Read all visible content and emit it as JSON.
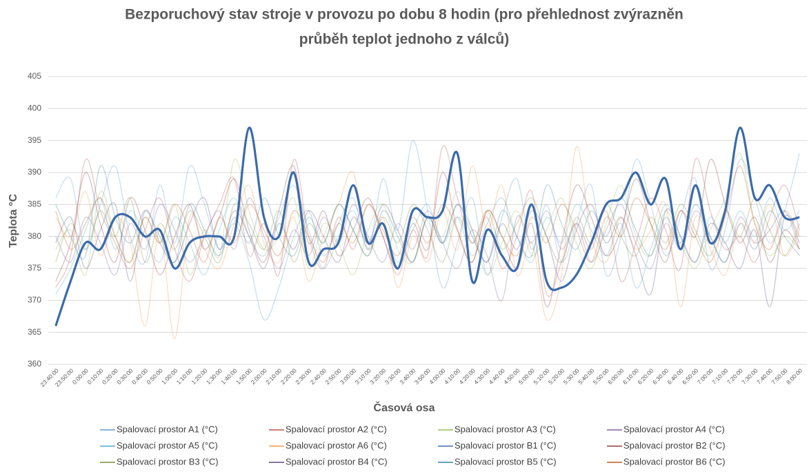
{
  "chart_data": {
    "type": "line",
    "title": [
      "Bezporuchový stav stroje v provozu po dobu 8 hodin (pro přehlednost zvýrazněn",
      "průběh teplot jednoho z válců)"
    ],
    "x_label": "Časová osa",
    "y_label": "Teplota °C",
    "categories": [
      "23:40:00",
      "23:50:00",
      "0:00:00",
      "0:10:00",
      "0:20:00",
      "0:30:00",
      "0:40:00",
      "0:50:00",
      "1:00:00",
      "1:10:00",
      "1:20:00",
      "1:30:00",
      "1:40:00",
      "1:50:00",
      "2:00:00",
      "2:10:00",
      "2:20:00",
      "2:30:00",
      "2:40:00",
      "2:50:00",
      "3:00:00",
      "3:10:00",
      "3:20:00",
      "3:30:00",
      "3:40:00",
      "3:50:00",
      "4:00:00",
      "4:10:00",
      "4:20:00",
      "4:30:00",
      "4:40:00",
      "4:50:00",
      "5:00:00",
      "5:10:00",
      "5:20:00",
      "5:30:00",
      "5:40:00",
      "5:50:00",
      "6:00:00",
      "6:10:00",
      "6:20:00",
      "6:30:00",
      "6:40:00",
      "6:50:00",
      "7:00:00",
      "7:10:00",
      "7:20:00",
      "7:30:00",
      "7:40:00",
      "7:50:00",
      "8:00:00"
    ],
    "ylim": [
      360,
      405
    ],
    "yticks": [
      360,
      365,
      370,
      375,
      380,
      385,
      390,
      395,
      400,
      405
    ],
    "grid": true,
    "series": [
      {
        "name": "Spalovací prostor A1 (°C)",
        "color": "#5b9bd5",
        "values": [
          386,
          389,
          378,
          385,
          391,
          380,
          376,
          388,
          379,
          391,
          385,
          378,
          382,
          376,
          367,
          372,
          380,
          384,
          377,
          382,
          386,
          378,
          389,
          381,
          395,
          384,
          372,
          379,
          386,
          374,
          383,
          389,
          378,
          385,
          376,
          382,
          388,
          374,
          380,
          392,
          385,
          377,
          383,
          389,
          375,
          381,
          392,
          386,
          379,
          384,
          393
        ]
      },
      {
        "name": "Spalovací prostor A2 (°C)",
        "color": "#c0504d",
        "values": [
          372,
          377,
          392,
          384,
          379,
          375,
          381,
          386,
          378,
          373,
          380,
          385,
          389,
          377,
          382,
          374,
          392,
          380,
          375,
          383,
          378,
          385,
          380,
          374,
          381,
          377,
          394,
          386,
          379,
          383,
          375,
          380,
          387,
          371,
          376,
          382,
          378,
          384,
          373,
          379,
          386,
          381,
          375,
          392,
          384,
          378,
          380,
          376,
          383,
          388,
          381
        ]
      },
      {
        "name": "Spalovací prostor A3 (°C)",
        "color": "#9bbb59",
        "values": [
          378,
          381,
          374,
          387,
          380,
          376,
          383,
          379,
          385,
          374,
          381,
          377,
          392,
          384,
          378,
          380,
          386,
          375,
          382,
          379,
          374,
          381,
          385,
          378,
          376,
          383,
          380,
          387,
          381,
          374,
          379,
          384,
          377,
          381,
          386,
          379,
          375,
          382,
          388,
          380,
          377,
          384,
          379,
          375,
          381,
          386,
          393,
          382,
          377,
          380,
          378
        ]
      },
      {
        "name": "Spalovací prostor A4 (°C)",
        "color": "#8064a2",
        "values": [
          380,
          376,
          383,
          379,
          374,
          382,
          378,
          385,
          381,
          376,
          380,
          384,
          378,
          386,
          380,
          375,
          381,
          377,
          383,
          379,
          385,
          380,
          376,
          382,
          378,
          384,
          379,
          375,
          381,
          377,
          370,
          383,
          379,
          384,
          378,
          382,
          376,
          381,
          385,
          379,
          375,
          382,
          378,
          384,
          380,
          376,
          383,
          379,
          381,
          384,
          378
        ]
      },
      {
        "name": "Spalovací prostor A5 (°C)",
        "color": "#4bacc6",
        "values": [
          371,
          375,
          381,
          386,
          378,
          384,
          380,
          376,
          383,
          379,
          374,
          381,
          386,
          380,
          377,
          383,
          388,
          381,
          375,
          380,
          384,
          378,
          382,
          376,
          381,
          385,
          379,
          383,
          377,
          382,
          386,
          380,
          376,
          383,
          379,
          385,
          381,
          377,
          382,
          372,
          378,
          385,
          380,
          376,
          383,
          379,
          384,
          380,
          386,
          381,
          384
        ]
      },
      {
        "name": "Spalovací prostor A6 (°C)",
        "color": "#f79646",
        "values": [
          383,
          380,
          387,
          377,
          383,
          379,
          366,
          381,
          364,
          383,
          378,
          375,
          382,
          388,
          379,
          376,
          383,
          373,
          380,
          385,
          390,
          378,
          383,
          372,
          380,
          376,
          384,
          378,
          391,
          381,
          388,
          374,
          379,
          367,
          374,
          394,
          380,
          376,
          383,
          378,
          381,
          385,
          369,
          383,
          378,
          374,
          382,
          379,
          385,
          377,
          381
        ]
      },
      {
        "name": "Spalovací prostor B1 (°C)",
        "color": "#3a6baa",
        "highlight": true,
        "values": [
          366,
          373,
          379,
          378,
          383,
          383,
          380,
          381,
          375,
          379,
          380,
          380,
          380,
          397,
          383,
          380,
          390,
          376,
          378,
          379,
          388,
          379,
          382,
          375,
          384,
          383,
          384,
          393,
          373,
          381,
          377,
          375,
          385,
          373,
          372,
          374,
          379,
          385,
          386,
          390,
          385,
          389,
          378,
          388,
          379,
          384,
          397,
          386,
          388,
          383,
          383
        ]
      },
      {
        "name": "Spalovací prostor B2 (°C)",
        "color": "#8b3a38",
        "values": [
          373,
          379,
          390,
          382,
          376,
          386,
          381,
          374,
          380,
          385,
          378,
          383,
          389,
          381,
          376,
          384,
          391,
          379,
          384,
          377,
          381,
          386,
          380,
          375,
          382,
          378,
          390,
          381,
          376,
          384,
          380,
          375,
          382,
          369,
          379,
          388,
          383,
          377,
          381,
          389,
          382,
          376,
          384,
          380,
          392,
          385,
          379,
          383,
          376,
          381,
          378
        ]
      },
      {
        "name": "Spalovací prostor B3 (°C)",
        "color": "#76923c",
        "values": [
          376,
          382,
          378,
          384,
          380,
          386,
          376,
          382,
          378,
          384,
          380,
          376,
          385,
          382,
          378,
          384,
          376,
          382,
          379,
          385,
          381,
          377,
          383,
          379,
          385,
          381,
          376,
          383,
          379,
          384,
          378,
          382,
          386,
          380,
          376,
          383,
          379,
          385,
          380,
          377,
          383,
          379,
          385,
          381,
          377,
          384,
          380,
          386,
          381,
          377,
          382
        ]
      },
      {
        "name": "Spalovací prostor B4 (°C)",
        "color": "#5f497a",
        "values": [
          379,
          383,
          375,
          381,
          385,
          373,
          384,
          379,
          376,
          382,
          386,
          378,
          384,
          380,
          375,
          382,
          378,
          384,
          380,
          376,
          383,
          379,
          385,
          381,
          376,
          383,
          379,
          385,
          380,
          376,
          382,
          378,
          384,
          380,
          373,
          381,
          385,
          379,
          383,
          377,
          371,
          384,
          380,
          376,
          382,
          379,
          375,
          381,
          369,
          383,
          379
        ]
      },
      {
        "name": "Spalovací prostor B5 (°C)",
        "color": "#31849b",
        "values": [
          385,
          380,
          377,
          391,
          383,
          379,
          384,
          380,
          376,
          385,
          381,
          377,
          383,
          379,
          386,
          380,
          377,
          383,
          379,
          385,
          381,
          377,
          384,
          380,
          376,
          383,
          379,
          385,
          381,
          376,
          384,
          380,
          377,
          388,
          382,
          378,
          384,
          380,
          386,
          381,
          377,
          383,
          379,
          385,
          380,
          376,
          382,
          378,
          384,
          380,
          377
        ]
      },
      {
        "name": "Spalovací prostor B6 (°C)",
        "color": "#c65911",
        "values": [
          384,
          378,
          382,
          386,
          380,
          376,
          383,
          379,
          385,
          381,
          376,
          383,
          379,
          385,
          381,
          377,
          384,
          380,
          376,
          382,
          379,
          385,
          381,
          377,
          383,
          379,
          385,
          381,
          376,
          384,
          380,
          377,
          383,
          379,
          385,
          381,
          376,
          383,
          380,
          386,
          382,
          378,
          384,
          380,
          376,
          383,
          391,
          382,
          378,
          384,
          380
        ]
      }
    ]
  }
}
